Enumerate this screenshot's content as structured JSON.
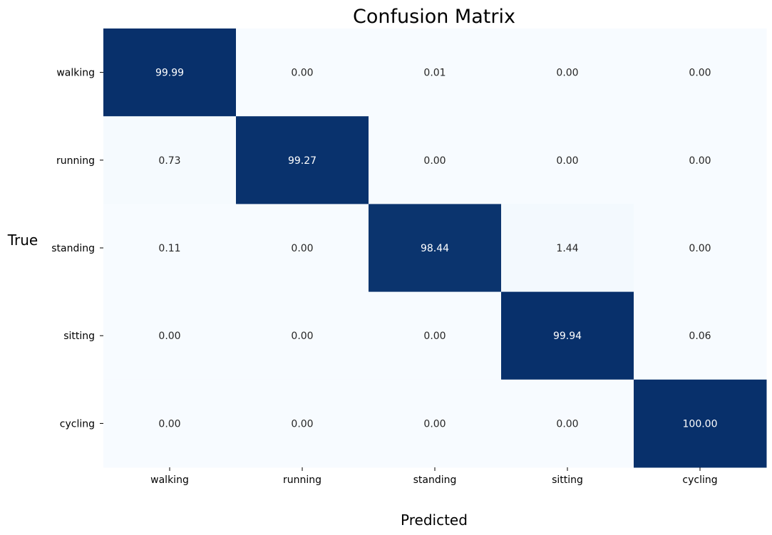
{
  "chart_data": {
    "type": "heatmap",
    "title": "Confusion Matrix",
    "xlabel": "Predicted",
    "ylabel": "True",
    "x_categories": [
      "walking",
      "running",
      "standing",
      "sitting",
      "cycling"
    ],
    "y_categories": [
      "walking",
      "running",
      "standing",
      "sitting",
      "cycling"
    ],
    "values": [
      [
        99.99,
        0.0,
        0.01,
        0.0,
        0.0
      ],
      [
        0.73,
        99.27,
        0.0,
        0.0,
        0.0
      ],
      [
        0.11,
        0.0,
        98.44,
        1.44,
        0.0
      ],
      [
        0.0,
        0.0,
        0.0,
        99.94,
        0.06
      ],
      [
        0.0,
        0.0,
        0.0,
        0.0,
        100.0
      ]
    ],
    "value_format": "2 decimals",
    "colormap": {
      "low": "#f7fbff",
      "mid": "#6baed6",
      "high": "#08306b"
    },
    "value_range": [
      0,
      100
    ],
    "colorbar": false
  }
}
